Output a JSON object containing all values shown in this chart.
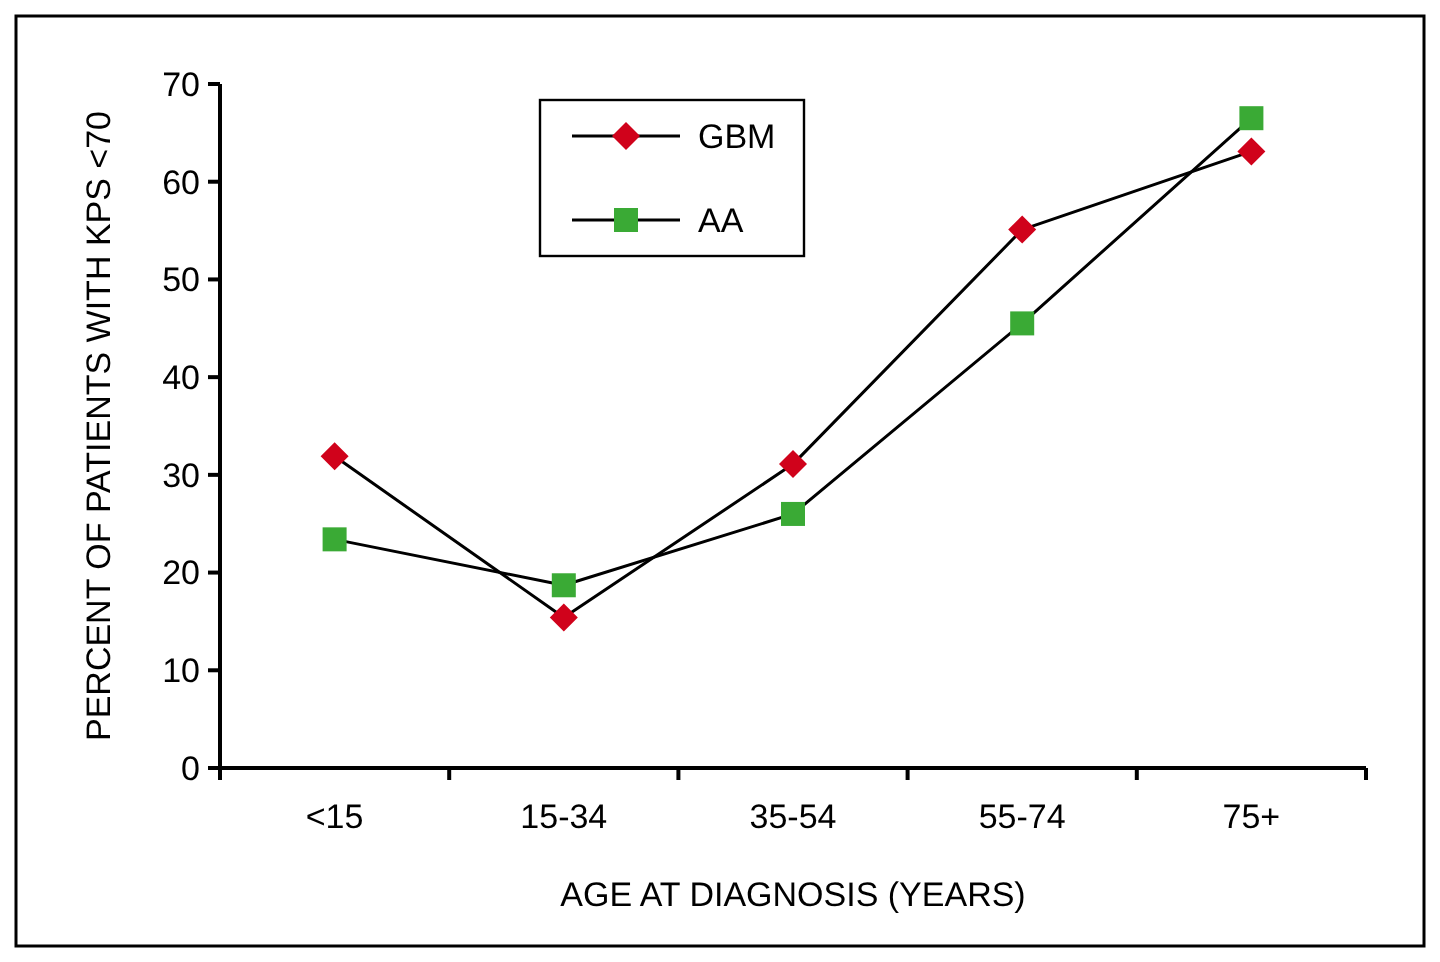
{
  "chart_data": {
    "type": "line",
    "xlabel": "AGE AT DIAGNOSIS (YEARS)",
    "ylabel": "PERCENT OF PATIENTS WITH KPS <70",
    "categories": [
      "<15",
      "15-34",
      "35-54",
      "55-74",
      "75+"
    ],
    "series": [
      {
        "name": "GBM",
        "color": "#d0021b",
        "marker": "diamond",
        "values": [
          31.9,
          15.4,
          31.1,
          55.1,
          63.1
        ]
      },
      {
        "name": "AA",
        "color": "#3aaa35",
        "marker": "square",
        "values": [
          23.4,
          18.7,
          26.0,
          45.5,
          66.5
        ]
      }
    ],
    "ylim": [
      0,
      70
    ],
    "yticks": [
      0,
      10,
      20,
      30,
      40,
      50,
      60,
      70
    ],
    "grid": false,
    "legend": "top",
    "line_style": "solid"
  }
}
